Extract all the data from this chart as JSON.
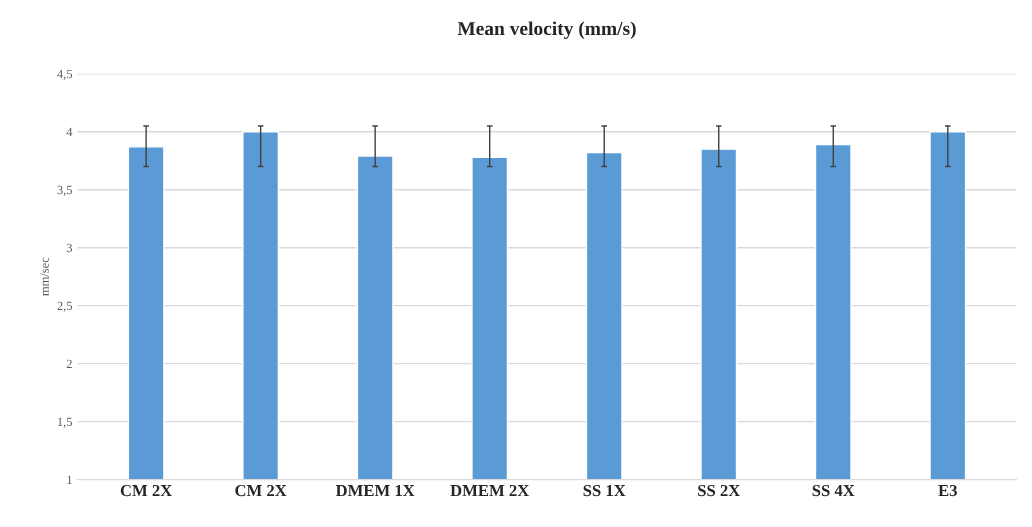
{
  "chart_data": {
    "type": "bar",
    "title": "Mean velocity (mm/s)",
    "ylabel": "mm/sec",
    "categories": [
      "CM 2X",
      "CM 2X",
      "DMEM 1X",
      "DMEM 2X",
      "SS 1X",
      "SS 2X",
      "SS 4X",
      "E3"
    ],
    "values": [
      3.87,
      4.0,
      3.79,
      3.78,
      3.82,
      3.85,
      3.89,
      4.0
    ],
    "errors": [
      [
        3.7,
        4.05
      ],
      [
        3.7,
        4.05
      ],
      [
        3.7,
        4.05
      ],
      [
        3.7,
        4.05
      ],
      [
        3.7,
        4.05
      ],
      [
        3.7,
        4.05
      ],
      [
        3.7,
        4.05
      ],
      [
        3.7,
        4.05
      ]
    ],
    "color": "#5b9bd5",
    "ylim": [
      1,
      4.5
    ],
    "yticks": [
      1,
      {
        "value": 1.5,
        "label": "1,5"
      },
      2,
      {
        "value": 2.5,
        "label": "2,5"
      },
      3,
      {
        "value": 3.5,
        "label": "3,5"
      },
      4,
      {
        "value": 4.5,
        "label": "4,5"
      }
    ],
    "grid": "y"
  }
}
